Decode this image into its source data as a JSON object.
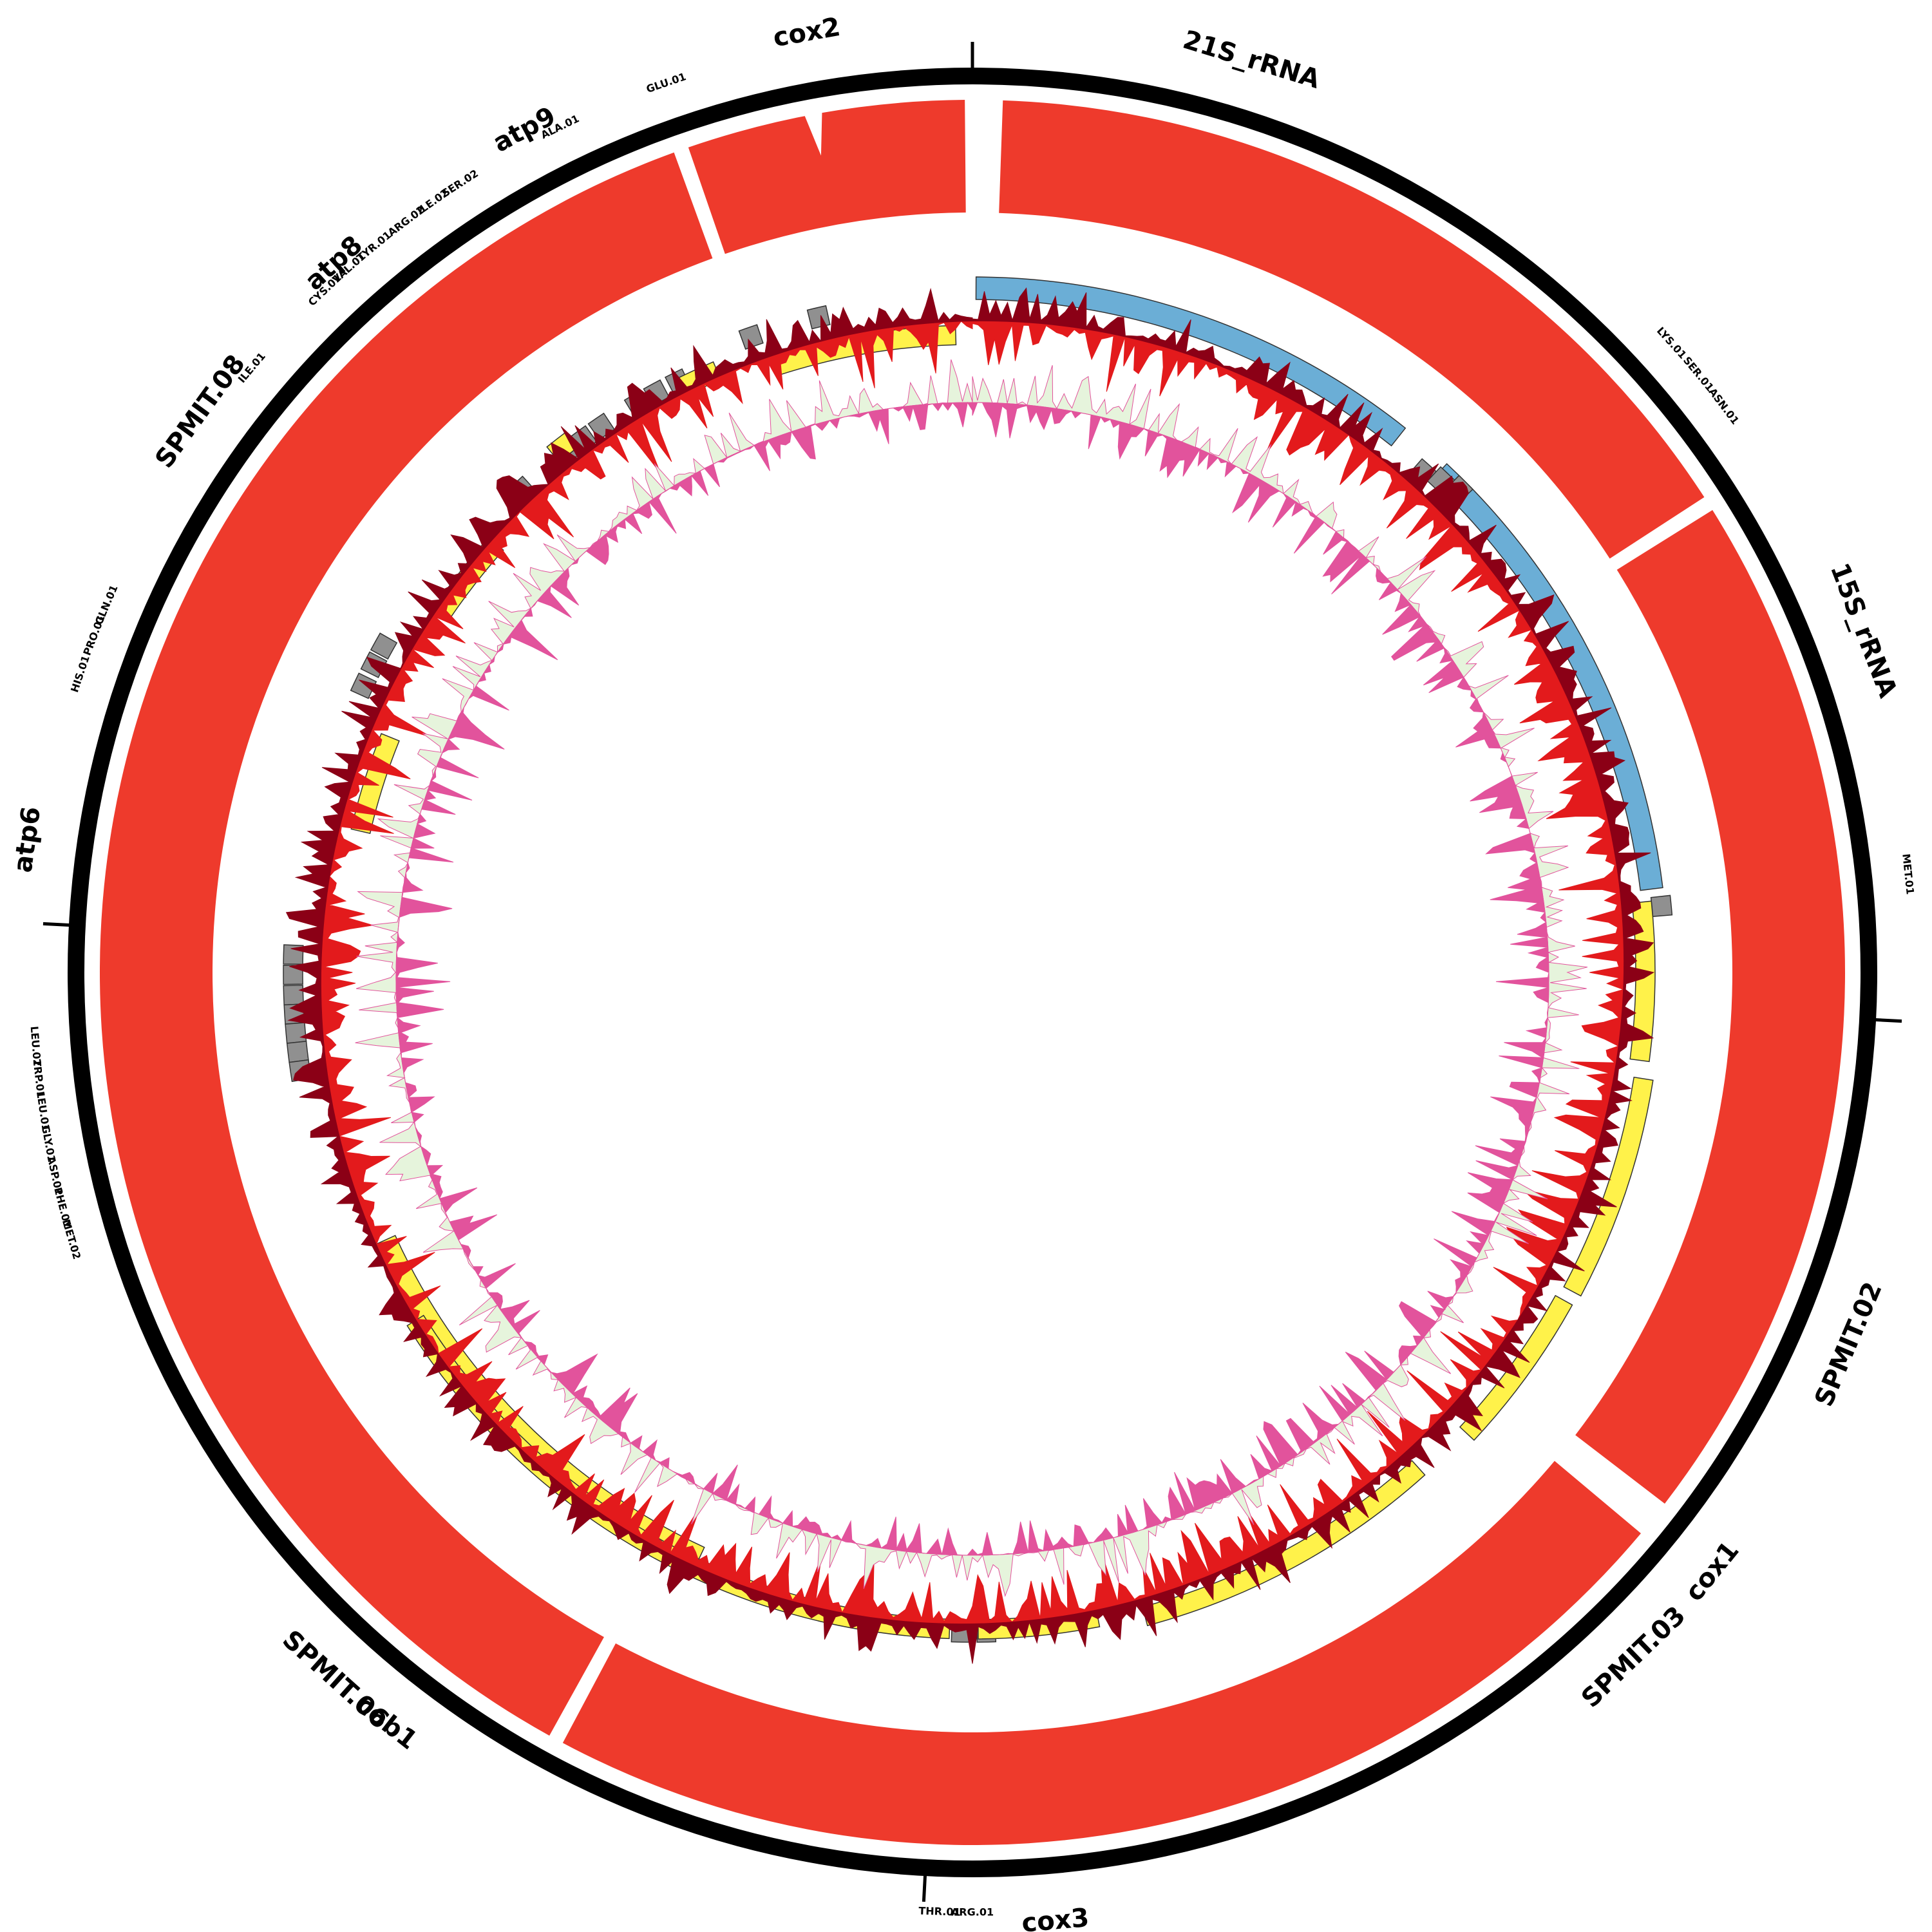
{
  "colors": {
    "backbone": "#000000",
    "outer_ring": "#ee3a2c",
    "rrna": "#6baed6",
    "trna": "#909090",
    "orf": "#fff24a",
    "skew_pos": "#e31a1c",
    "skew_neg": "#8b0016",
    "gc_fill": "#e2539c",
    "gc_light": "#e6f4dc"
  },
  "gene_labels": [
    {
      "text": "cox2",
      "angle": -10.0
    },
    {
      "text": "21S_rRNA",
      "angle": 17.0
    },
    {
      "text": "15S_rRNA",
      "angle": 69.0
    },
    {
      "text": "SPMIT.02",
      "angle": 113.0
    },
    {
      "text": "cox1",
      "angle": 129.0
    },
    {
      "text": "SPMIT.03",
      "angle": 136.0
    },
    {
      "text": "cox3",
      "angle": 175.0
    },
    {
      "text": "cob1",
      "angle": 218.0
    },
    {
      "text": "SPMIT.06",
      "angle": 222.0
    },
    {
      "text": "atp6",
      "angle": 278.0
    },
    {
      "text": "SPMIT.08",
      "angle": 306.0
    },
    {
      "text": "atp8",
      "angle": 318.0
    },
    {
      "text": "atp9",
      "angle": 332.0
    }
  ],
  "trna_labels": [
    {
      "text": "GLU.01",
      "angle": -19.0
    },
    {
      "text": "ALA.01",
      "angle": -26.0
    },
    {
      "text": "SER.02",
      "angle": -33.0
    },
    {
      "text": "ILE.02",
      "angle": -35.0
    },
    {
      "text": "ARG.02",
      "angle": -37.0
    },
    {
      "text": "TYR.01",
      "angle": -39.5
    },
    {
      "text": "VAL.01",
      "angle": -41.5
    },
    {
      "text": "CYS.01",
      "angle": -43.5
    },
    {
      "text": "ILE.01",
      "angle": -50.0
    },
    {
      "text": "GLN.01",
      "angle": -67.0
    },
    {
      "text": "PRO.01",
      "angle": -69.0
    },
    {
      "text": "HIS.01",
      "angle": -71.5
    },
    {
      "text": "LEU.02",
      "angle": -94.5
    },
    {
      "text": "TRP.01",
      "angle": -96.5
    },
    {
      "text": "LEU.01",
      "angle": -98.5
    },
    {
      "text": "GLY.01",
      "angle": -100.5
    },
    {
      "text": "ASP.01",
      "angle": -102.5
    },
    {
      "text": "PHE.01",
      "angle": -104.5
    },
    {
      "text": "MET.02",
      "angle": -106.5
    },
    {
      "text": "LYS.01",
      "angle": 48.0
    },
    {
      "text": "SER.01",
      "angle": 50.5
    },
    {
      "text": "ASN.01",
      "angle": 53.0
    },
    {
      "text": "MET.01",
      "angle": 84.0
    },
    {
      "text": "THR.01",
      "angle": 182.0
    },
    {
      "text": "ARG.01",
      "angle": 180.0
    }
  ]
}
